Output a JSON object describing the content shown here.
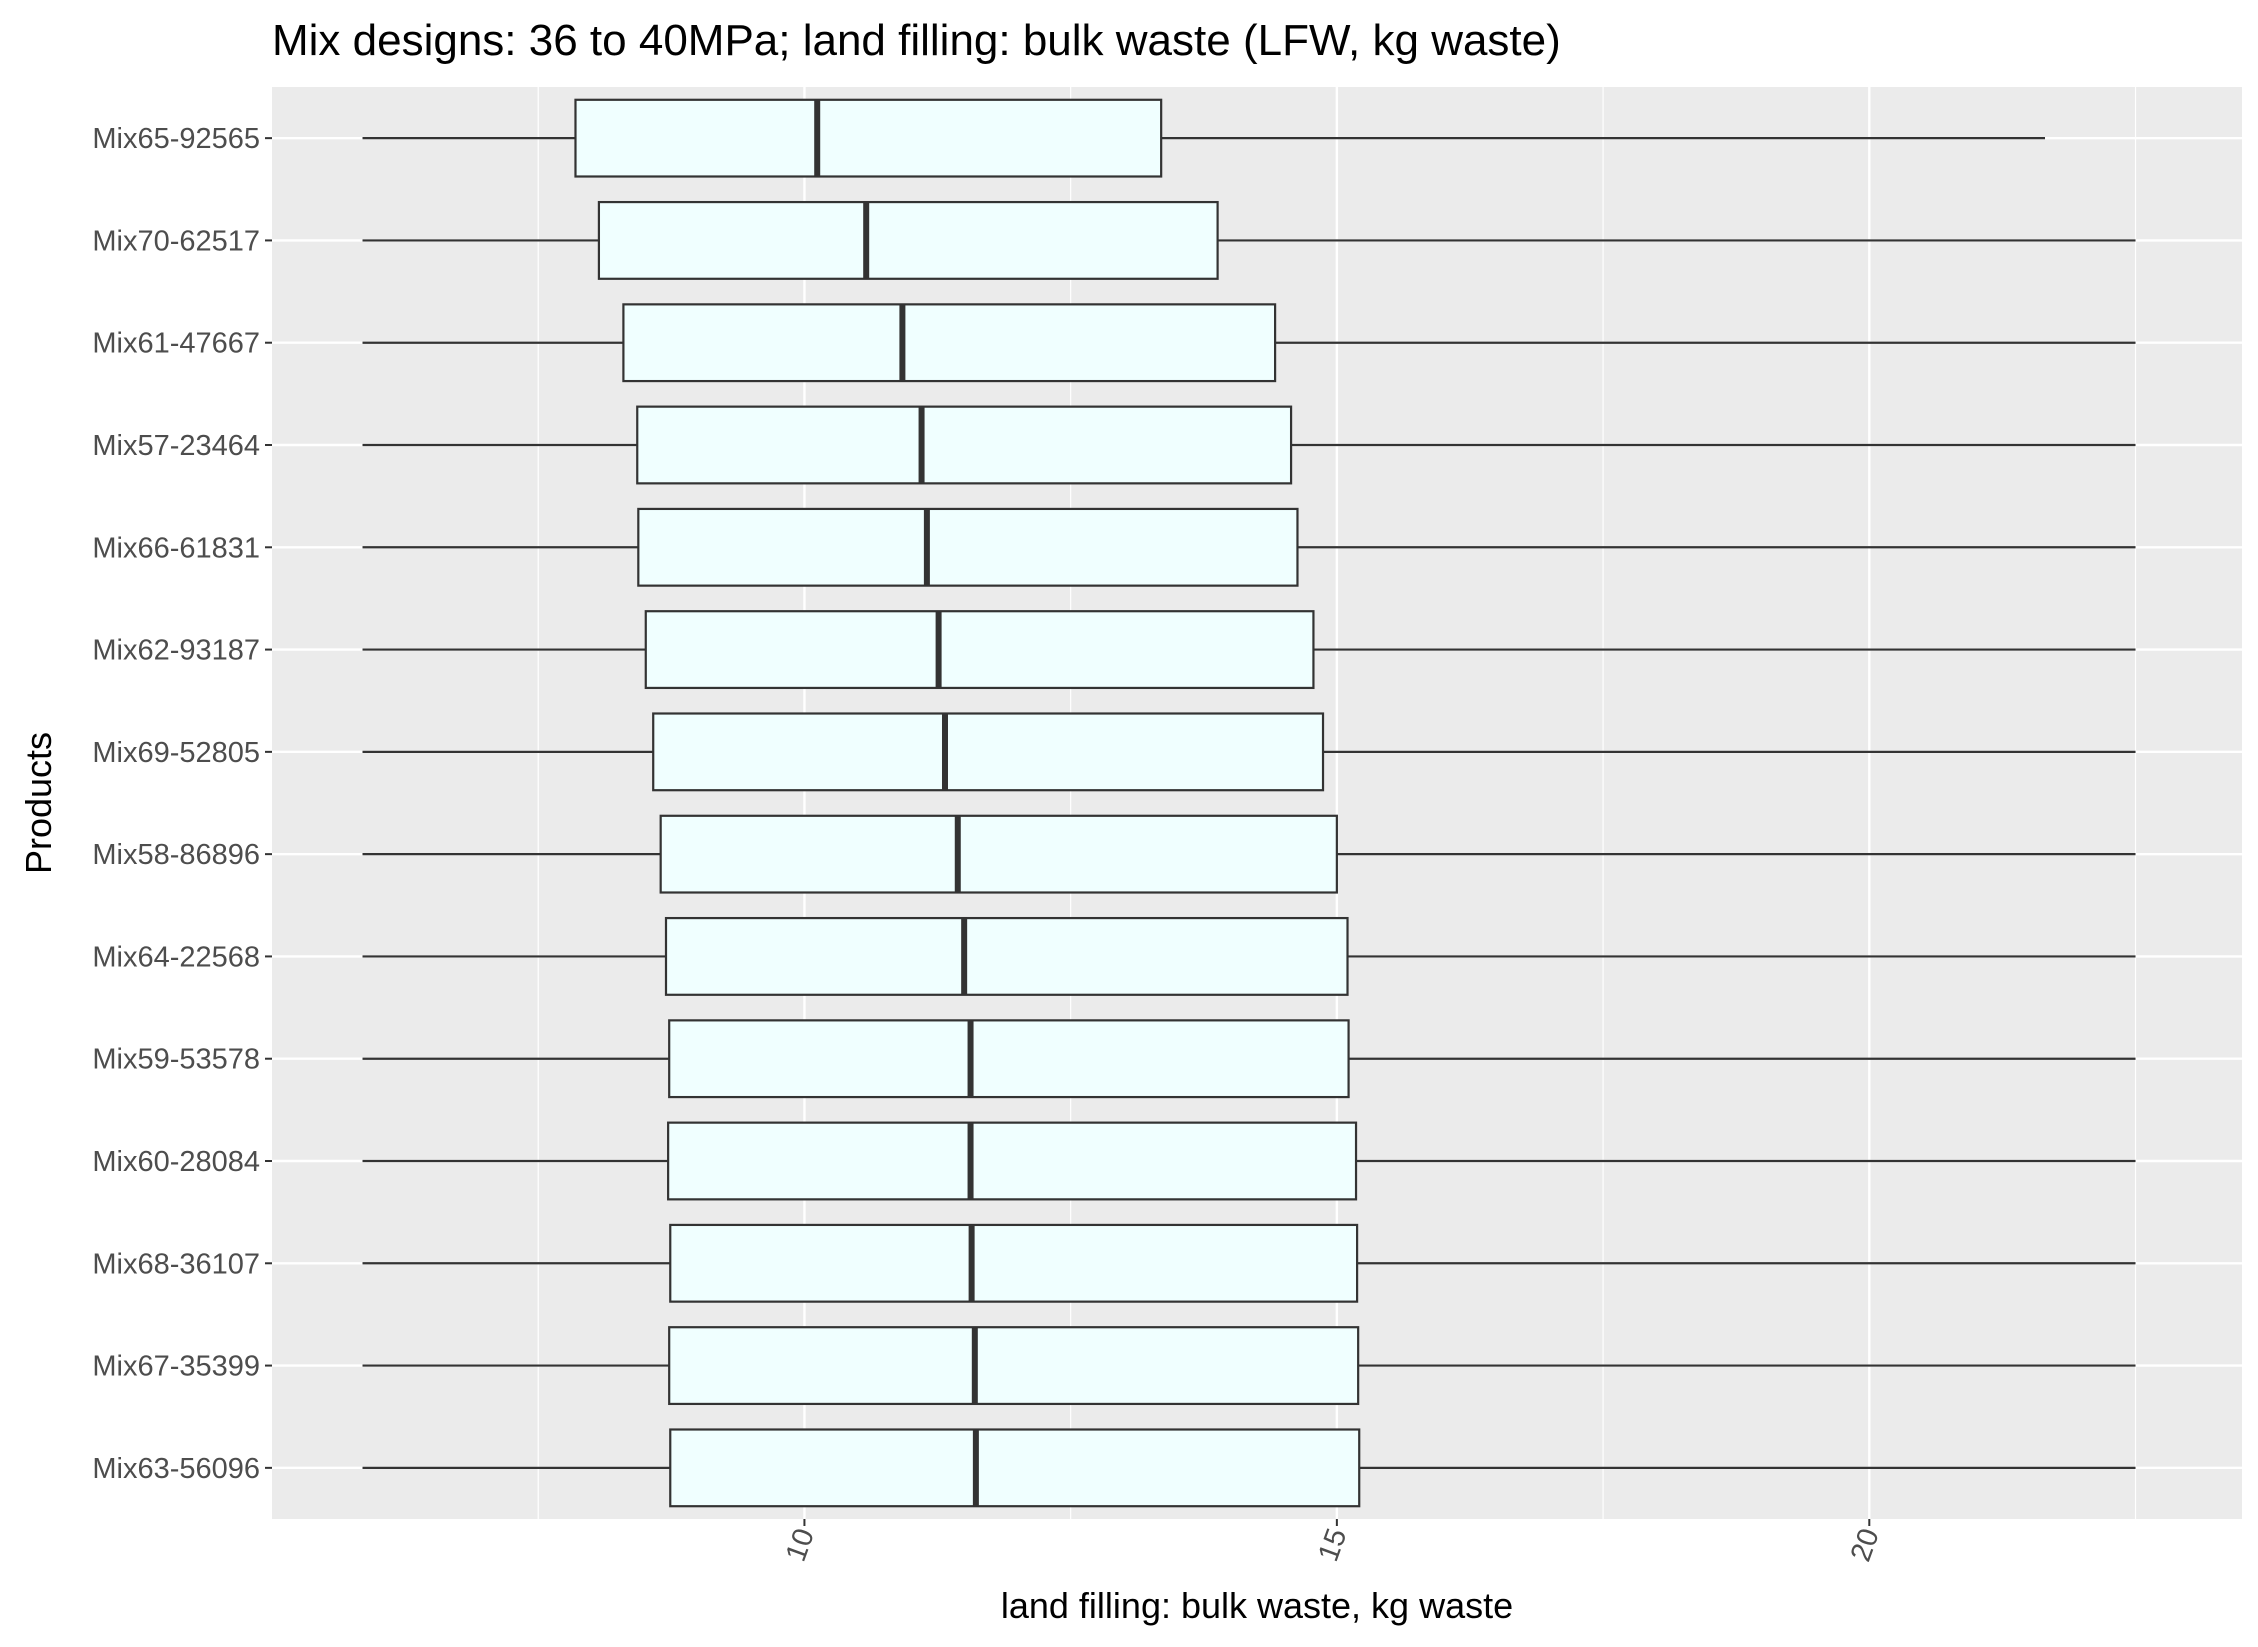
{
  "chart_data": {
    "type": "box",
    "orientation": "horizontal",
    "title": "Mix designs: 36 to 40MPa; land filling: bulk waste (LFW, kg waste)",
    "xlabel": "land filling: bulk waste, kg waste",
    "ylabel": "Products",
    "xlim": [
      5.0,
      23.5
    ],
    "xticks": [
      10,
      15,
      20
    ],
    "x_tick_rotation": "rotated ~70° counter-clockwise",
    "grid": true,
    "legend": "none",
    "colors": {
      "panel_background": "#ebebeb",
      "grid_line": "#ffffff",
      "box_fill": "#f0ffff",
      "box_stroke": "#333333"
    },
    "categories": [
      "Mix65-92565",
      "Mix70-62517",
      "Mix61-47667",
      "Mix57-23464",
      "Mix66-61831",
      "Mix62-93187",
      "Mix69-52805",
      "Mix58-86896",
      "Mix64-22568",
      "Mix59-53578",
      "Mix60-28084",
      "Mix68-36107",
      "Mix67-35399",
      "Mix63-56096"
    ],
    "boxes": [
      {
        "category": "Mix65-92565",
        "min": 5.85,
        "q1": 7.85,
        "median": 10.12,
        "q3": 13.35,
        "max": 21.65
      },
      {
        "category": "Mix70-62517",
        "min": 5.85,
        "q1": 8.07,
        "median": 10.58,
        "q3": 13.88,
        "max": 22.5
      },
      {
        "category": "Mix61-47667",
        "min": 5.85,
        "q1": 8.3,
        "median": 10.92,
        "q3": 14.42,
        "max": 22.5
      },
      {
        "category": "Mix57-23464",
        "min": 5.85,
        "q1": 8.43,
        "median": 11.1,
        "q3": 14.57,
        "max": 22.5
      },
      {
        "category": "Mix66-61831",
        "min": 5.85,
        "q1": 8.44,
        "median": 11.15,
        "q3": 14.63,
        "max": 22.5
      },
      {
        "category": "Mix62-93187",
        "min": 5.85,
        "q1": 8.51,
        "median": 11.26,
        "q3": 14.78,
        "max": 22.5
      },
      {
        "category": "Mix69-52805",
        "min": 5.85,
        "q1": 8.58,
        "median": 11.32,
        "q3": 14.87,
        "max": 22.5
      },
      {
        "category": "Mix58-86896",
        "min": 5.85,
        "q1": 8.65,
        "median": 11.44,
        "q3": 15.0,
        "max": 22.5
      },
      {
        "category": "Mix64-22568",
        "min": 5.85,
        "q1": 8.7,
        "median": 11.5,
        "q3": 15.1,
        "max": 22.5
      },
      {
        "category": "Mix59-53578",
        "min": 5.85,
        "q1": 8.73,
        "median": 11.56,
        "q3": 15.11,
        "max": 22.5
      },
      {
        "category": "Mix60-28084",
        "min": 5.85,
        "q1": 8.72,
        "median": 11.56,
        "q3": 15.18,
        "max": 22.5
      },
      {
        "category": "Mix68-36107",
        "min": 5.85,
        "q1": 8.74,
        "median": 11.57,
        "q3": 15.19,
        "max": 22.5
      },
      {
        "category": "Mix67-35399",
        "min": 5.85,
        "q1": 8.73,
        "median": 11.6,
        "q3": 15.2,
        "max": 22.5
      },
      {
        "category": "Mix63-56096",
        "min": 5.85,
        "q1": 8.74,
        "median": 11.61,
        "q3": 15.21,
        "max": 22.5
      }
    ]
  }
}
